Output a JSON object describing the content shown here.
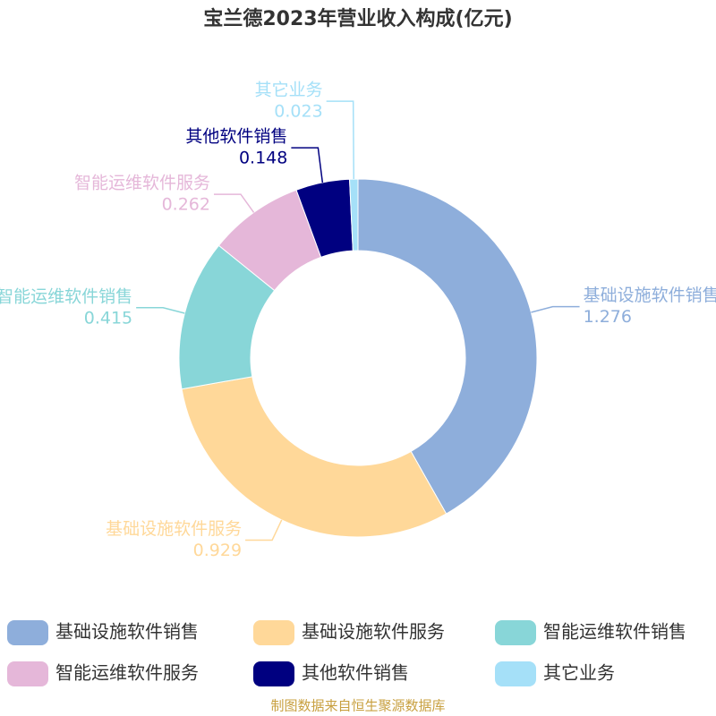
{
  "chart_data": {
    "type": "donut",
    "title": "宝兰德2023年营业收入构成(亿元)",
    "categories": [
      "基础设施软件销售",
      "基础设施软件服务",
      "智能运维软件销售",
      "智能运维软件服务",
      "其他软件销售",
      "其它业务"
    ],
    "series": [
      {
        "values": [
          1.276,
          0.929,
          0.415,
          0.262,
          0.148,
          0.023
        ],
        "colors": [
          "#8eaedb",
          "#ffd899",
          "#88d6d8",
          "#e5b7d9",
          "#000080",
          "#a5e0f8"
        ]
      }
    ],
    "legend": "bottom",
    "source": "制图数据来自恒生聚源数据库"
  }
}
